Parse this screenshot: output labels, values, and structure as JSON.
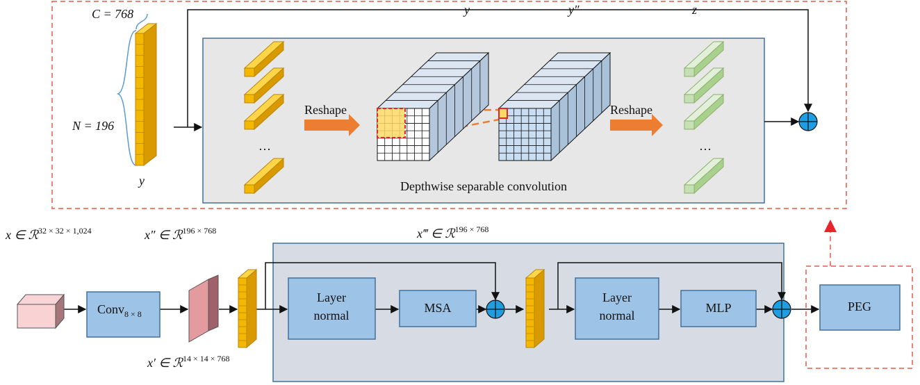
{
  "peg_detail": {
    "c_label": "C = 768",
    "n_label": "N = 196",
    "input_label": "y",
    "cube1_label": "y",
    "cube2_label": "y″",
    "output_label": "z",
    "reshape_labels": [
      "Reshape",
      "Reshape"
    ],
    "ellipses": [
      "…",
      "…"
    ],
    "caption": "Depthwise separable convolution"
  },
  "pipeline": {
    "input_shape": {
      "base": "x ∈ ℛ",
      "sup": "32 × 32 × 1,024"
    },
    "token_shape": {
      "base": "x″ ∈ ℛ",
      "sup": "196 × 768"
    },
    "encoder_shape": {
      "base": "x‴ ∈ ℛ",
      "sup": "196 × 768"
    },
    "conv_shape": {
      "base": "x′ ∈ ℛ",
      "sup": "14 × 14 × 768"
    },
    "conv": {
      "base": "Conv",
      "sub": "8 × 8"
    },
    "blocks": [
      {
        "line1": "Layer",
        "line2": "normal"
      },
      {
        "label": "MSA"
      },
      {
        "line1": "Layer",
        "line2": "normal"
      },
      {
        "label": "MLP"
      },
      {
        "label": "PEG"
      }
    ]
  }
}
